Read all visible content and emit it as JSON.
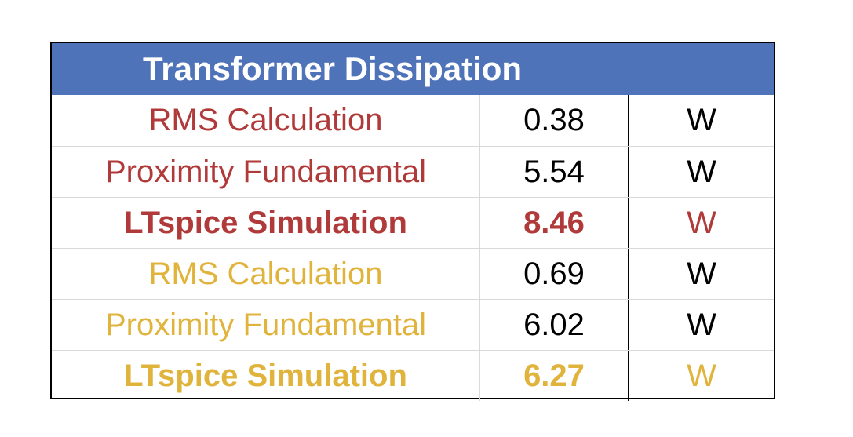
{
  "colors": {
    "header_bg": "#4f73b9",
    "header_text": "#ffffff",
    "red": "#b03a3a",
    "gold": "#e0b43c",
    "black": "#000000"
  },
  "chart_data": {
    "type": "table",
    "title": "Transformer Dissipation",
    "columns": [
      "",
      "",
      ""
    ],
    "rows": [
      {
        "label": "RMS Calculation",
        "value": "0.38",
        "unit": "W",
        "color": "#b03a3a",
        "bold": false,
        "value_colored": false
      },
      {
        "label": "Proximity Fundamental",
        "value": "5.54",
        "unit": "W",
        "color": "#b03a3a",
        "bold": false,
        "value_colored": false
      },
      {
        "label": "LTspice Simulation",
        "value": "8.46",
        "unit": "W",
        "color": "#b03a3a",
        "bold": true,
        "value_colored": true
      },
      {
        "label": "RMS Calculation",
        "value": "0.69",
        "unit": "W",
        "color": "#e0b43c",
        "bold": false,
        "value_colored": false
      },
      {
        "label": "Proximity Fundamental",
        "value": "6.02",
        "unit": "W",
        "color": "#e0b43c",
        "bold": false,
        "value_colored": false
      },
      {
        "label": "LTspice Simulation",
        "value": "6.27",
        "unit": "W",
        "color": "#e0b43c",
        "bold": true,
        "value_colored": true
      }
    ]
  }
}
